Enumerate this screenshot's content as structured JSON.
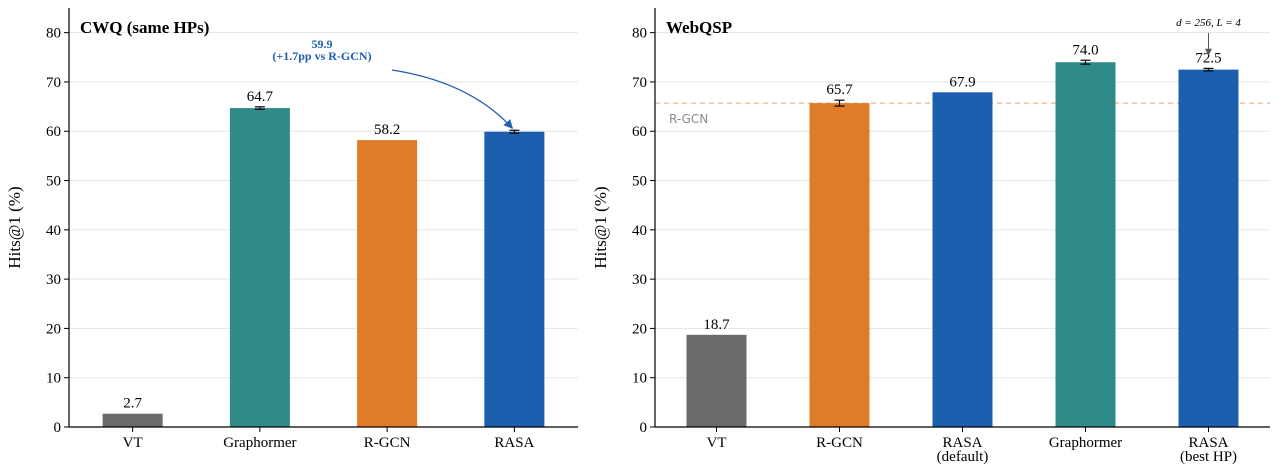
{
  "colors": {
    "VT": "#6b6b6b",
    "Graphormer": "#2e8b87",
    "R-GCN": "#e07b2a",
    "RASA": "#1c5fae",
    "annotation": "#1f5fb0",
    "reference_line": "#f0b48c",
    "grid": "#e6e6e6"
  },
  "chart_data": [
    {
      "type": "bar",
      "title": "CWQ (same HPs)",
      "ylabel": "Hits@1 (%)",
      "ylim": [
        0,
        85
      ],
      "yticks": [
        0,
        10,
        20,
        30,
        40,
        50,
        60,
        70,
        80
      ],
      "grid": "horizontal",
      "categories": [
        [
          "VT"
        ],
        [
          "Graphormer"
        ],
        [
          "R-GCN"
        ],
        [
          "RASA"
        ]
      ],
      "color_keys": [
        "VT",
        "Graphormer",
        "R-GCN",
        "RASA"
      ],
      "values": [
        2.7,
        64.7,
        58.2,
        59.9
      ],
      "errors": [
        0,
        0.25,
        0,
        0.3
      ],
      "data_labels": [
        "2.7",
        "64.7",
        "58.2",
        ""
      ],
      "annotation": {
        "lines": [
          "59.9",
          "(+1.7pp vs R-GCN)"
        ],
        "target_index": 3
      }
    },
    {
      "type": "bar",
      "title": "WebQSP",
      "ylabel": "Hits@1 (%)",
      "ylim": [
        0,
        85
      ],
      "yticks": [
        0,
        10,
        20,
        30,
        40,
        50,
        60,
        70,
        80
      ],
      "grid": "horizontal",
      "categories": [
        [
          "VT"
        ],
        [
          "R-GCN"
        ],
        [
          "RASA",
          "(default)"
        ],
        [
          "Graphormer"
        ],
        [
          "RASA",
          "(best HP)"
        ]
      ],
      "color_keys": [
        "VT",
        "R-GCN",
        "RASA",
        "Graphormer",
        "RASA"
      ],
      "values": [
        18.7,
        65.7,
        67.9,
        74.0,
        72.5
      ],
      "errors": [
        0,
        0.6,
        0,
        0.4,
        0.25
      ],
      "data_labels": [
        "18.7",
        "65.7",
        "67.9",
        "74.0",
        "72.5"
      ],
      "reference_line": {
        "value": 65.7,
        "label": "R-GCN"
      },
      "annotation": {
        "lines": [
          "d = 256, L = 4"
        ],
        "target_index": 4
      }
    }
  ]
}
